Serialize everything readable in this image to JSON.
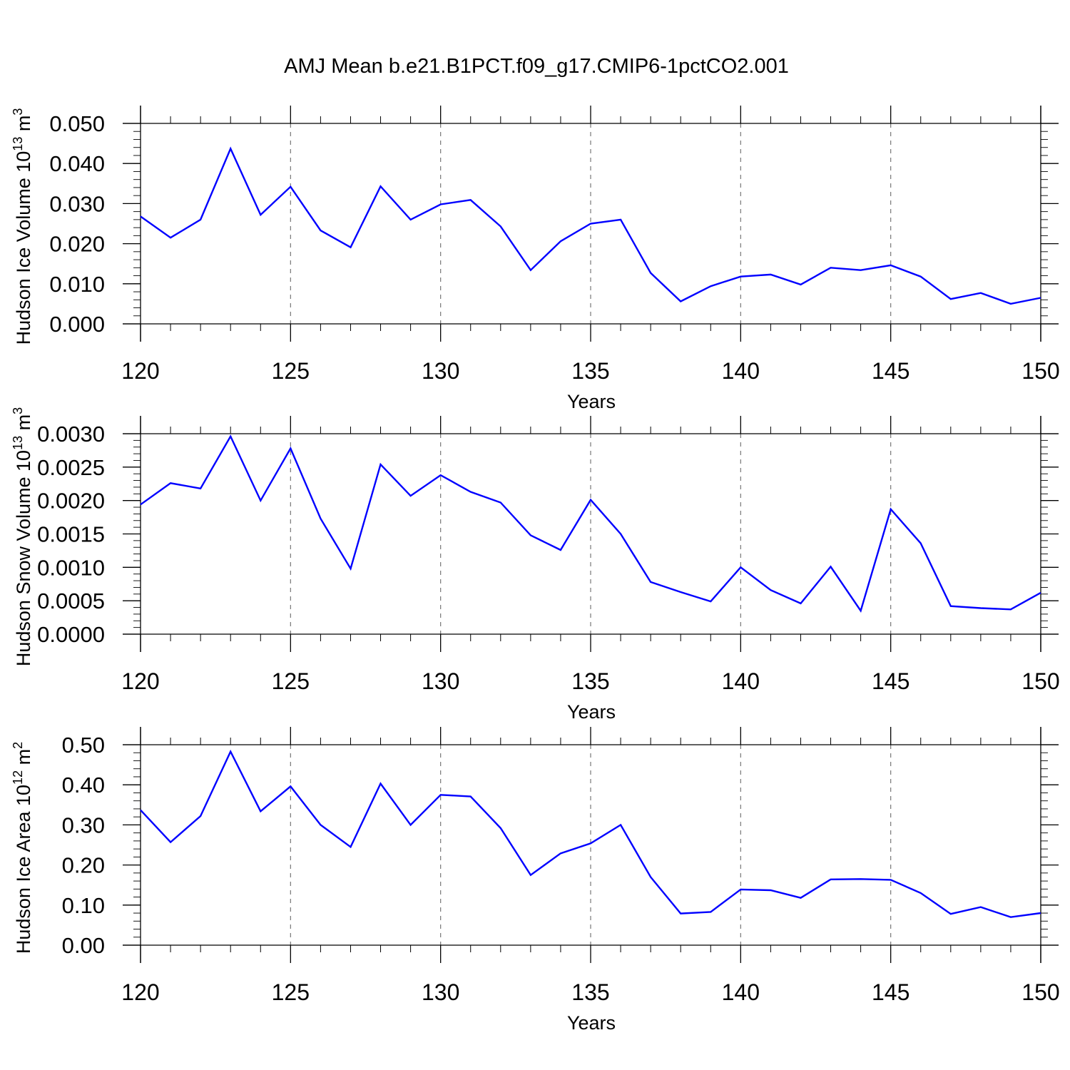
{
  "title": "AMJ Mean b.e21.B1PCT.f09_g17.CMIP6-1pctCO2.001",
  "line_color": "#0000ff",
  "chart_data": [
    {
      "type": "line",
      "ylabel": "Hudson Ice Volume 10",
      "ylabel_exp": "13",
      "ylabel_unit": " m",
      "ylabel_unit_exp": "3",
      "xlabel": "Years",
      "xlim": [
        120,
        150
      ],
      "ylim": [
        0,
        0.05
      ],
      "xticks": [
        120,
        125,
        130,
        135,
        140,
        145,
        150
      ],
      "xtick_labels": [
        "120",
        "125",
        "130",
        "135",
        "140",
        "145",
        "150"
      ],
      "yticks": [
        0,
        0.01,
        0.02,
        0.03,
        0.04,
        0.05
      ],
      "ytick_labels": [
        "0.000",
        "0.010",
        "0.020",
        "0.030",
        "0.040",
        "0.050"
      ],
      "y_minor_step": 0.002,
      "x": [
        120,
        121,
        122,
        123,
        124,
        125,
        126,
        127,
        128,
        129,
        130,
        131,
        132,
        133,
        134,
        135,
        136,
        137,
        138,
        139,
        140,
        141,
        142,
        143,
        144,
        145,
        146,
        147,
        148,
        149,
        150
      ],
      "series": [
        {
          "name": "Hudson Ice Volume",
          "values": [
            0.0268,
            0.0215,
            0.026,
            0.0437,
            0.0272,
            0.0342,
            0.0233,
            0.0191,
            0.0343,
            0.026,
            0.0298,
            0.0309,
            0.0243,
            0.0134,
            0.0206,
            0.025,
            0.026,
            0.0127,
            0.0056,
            0.0094,
            0.0118,
            0.0123,
            0.0098,
            0.014,
            0.0134,
            0.0146,
            0.0118,
            0.0062,
            0.0077,
            0.005,
            0.0065
          ]
        }
      ]
    },
    {
      "type": "line",
      "ylabel": "Hudson Snow Volume 10",
      "ylabel_exp": "13",
      "ylabel_unit": " m",
      "ylabel_unit_exp": "3",
      "xlabel": "Years",
      "xlim": [
        120,
        150
      ],
      "ylim": [
        0,
        0.003
      ],
      "xticks": [
        120,
        125,
        130,
        135,
        140,
        145,
        150
      ],
      "xtick_labels": [
        "120",
        "125",
        "130",
        "135",
        "140",
        "145",
        "150"
      ],
      "yticks": [
        0,
        0.0005,
        0.001,
        0.0015,
        0.002,
        0.0025,
        0.003
      ],
      "ytick_labels": [
        "0.0000",
        "0.0005",
        "0.0010",
        "0.0015",
        "0.0020",
        "0.0025",
        "0.0030"
      ],
      "y_minor_step": 0.0001,
      "x": [
        120,
        121,
        122,
        123,
        124,
        125,
        126,
        127,
        128,
        129,
        130,
        131,
        132,
        133,
        134,
        135,
        136,
        137,
        138,
        139,
        140,
        141,
        142,
        143,
        144,
        145,
        146,
        147,
        148,
        149,
        150
      ],
      "series": [
        {
          "name": "Hudson Snow Volume",
          "values": [
            0.00194,
            0.00226,
            0.00218,
            0.00296,
            0.002,
            0.00278,
            0.00173,
            0.00098,
            0.00254,
            0.00207,
            0.00238,
            0.00213,
            0.00197,
            0.00148,
            0.00126,
            0.00201,
            0.0015,
            0.00078,
            0.00063,
            0.00049,
            0.001,
            0.00066,
            0.00046,
            0.00101,
            0.00035,
            0.00187,
            0.00136,
            0.00042,
            0.00039,
            0.00037,
            0.00062
          ]
        }
      ]
    },
    {
      "type": "line",
      "ylabel": "Hudson Ice Area 10",
      "ylabel_exp": "12",
      "ylabel_unit": " m",
      "ylabel_unit_exp": "2",
      "xlabel": "Years",
      "xlim": [
        120,
        150
      ],
      "ylim": [
        0,
        0.5
      ],
      "xticks": [
        120,
        125,
        130,
        135,
        140,
        145,
        150
      ],
      "xtick_labels": [
        "120",
        "125",
        "130",
        "135",
        "140",
        "145",
        "150"
      ],
      "yticks": [
        0,
        0.1,
        0.2,
        0.3,
        0.4,
        0.5
      ],
      "ytick_labels": [
        "0.00",
        "0.10",
        "0.20",
        "0.30",
        "0.40",
        "0.50"
      ],
      "y_minor_step": 0.02,
      "x": [
        120,
        121,
        122,
        123,
        124,
        125,
        126,
        127,
        128,
        129,
        130,
        131,
        132,
        133,
        134,
        135,
        136,
        137,
        138,
        139,
        140,
        141,
        142,
        143,
        144,
        145,
        146,
        147,
        148,
        149,
        150
      ],
      "series": [
        {
          "name": "Hudson Ice Area",
          "values": [
            0.337,
            0.257,
            0.322,
            0.483,
            0.334,
            0.396,
            0.3,
            0.245,
            0.403,
            0.3,
            0.375,
            0.371,
            0.292,
            0.175,
            0.229,
            0.254,
            0.3,
            0.17,
            0.079,
            0.083,
            0.139,
            0.137,
            0.118,
            0.164,
            0.165,
            0.163,
            0.13,
            0.078,
            0.095,
            0.07,
            0.08
          ]
        }
      ]
    }
  ]
}
